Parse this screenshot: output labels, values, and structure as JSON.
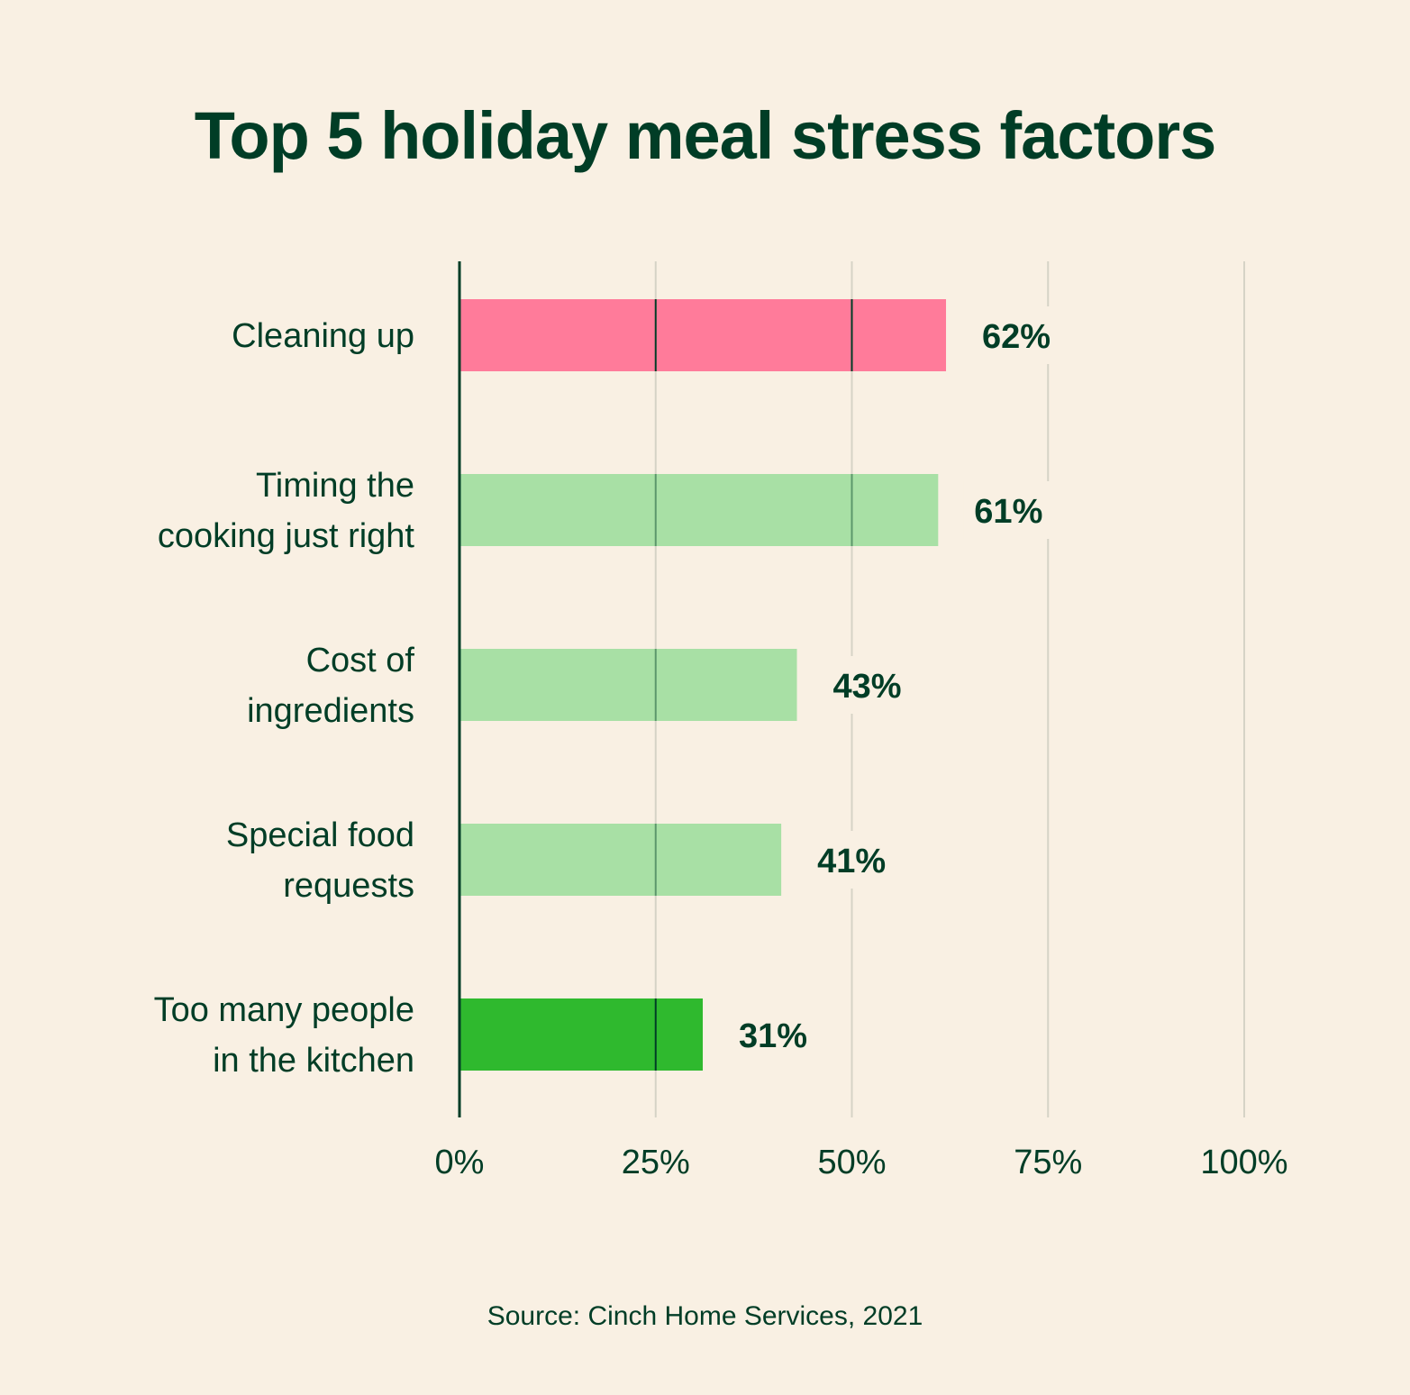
{
  "chart_data": {
    "type": "bar",
    "orientation": "horizontal",
    "title": "Top 5 holiday meal stress factors",
    "categories": [
      [
        "Cleaning up"
      ],
      [
        "Timing the",
        "cooking just right"
      ],
      [
        "Cost of",
        "ingredients"
      ],
      [
        "Special food",
        "requests"
      ],
      [
        "Too many people",
        "in the kitchen"
      ]
    ],
    "values": [
      62,
      61,
      43,
      41,
      31
    ],
    "value_labels": [
      "62%",
      "61%",
      "43%",
      "41%",
      "31%"
    ],
    "bar_colors": [
      "#ff7b9a",
      "#a8e0a5",
      "#a8e0a5",
      "#a8e0a5",
      "#2fb92e"
    ],
    "xlim": [
      0,
      100
    ],
    "xticks": [
      0,
      25,
      50,
      75,
      100
    ],
    "xtick_labels": [
      "0%",
      "25%",
      "50%",
      "75%",
      "100%"
    ],
    "grid": true,
    "source": "Source: Cinch Home Services, 2021"
  },
  "colors": {
    "background": "#f9f0e3",
    "text": "#003d26",
    "grid": "#d6d3c6"
  }
}
